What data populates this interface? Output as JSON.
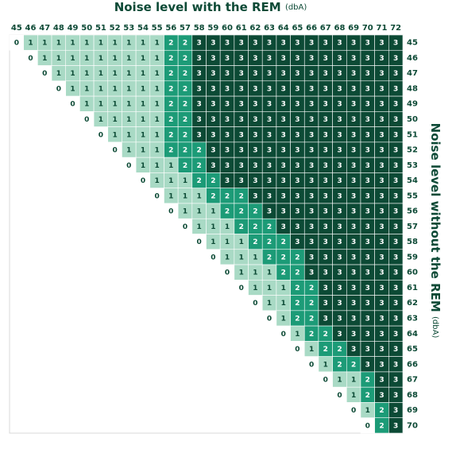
{
  "title": {
    "main": "Noise level with the REM",
    "unit": "(dbA)"
  },
  "side_title": {
    "main": "Noise level without the REM",
    "unit": "(dbA)"
  },
  "columns": [
    45,
    46,
    47,
    48,
    49,
    50,
    51,
    52,
    53,
    54,
    55,
    56,
    57,
    58,
    59,
    60,
    61,
    62,
    63,
    64,
    65,
    66,
    67,
    68,
    69,
    70,
    71,
    72
  ],
  "colors": [
    "#ffffff",
    "#a9dac5",
    "#1c9b77",
    "#0c4a35"
  ],
  "rows": [
    {
      "label": 45,
      "cells": [
        0,
        1,
        1,
        1,
        1,
        1,
        1,
        1,
        1,
        1,
        1,
        2,
        2,
        3,
        3,
        3,
        3,
        3,
        3,
        3,
        3,
        3,
        3,
        3,
        3,
        3,
        3,
        3
      ]
    },
    {
      "label": 46,
      "cells": [
        null,
        0,
        1,
        1,
        1,
        1,
        1,
        1,
        1,
        1,
        1,
        2,
        2,
        3,
        3,
        3,
        3,
        3,
        3,
        3,
        3,
        3,
        3,
        3,
        3,
        3,
        3,
        3
      ]
    },
    {
      "label": 47,
      "cells": [
        null,
        null,
        0,
        1,
        1,
        1,
        1,
        1,
        1,
        1,
        1,
        2,
        2,
        3,
        3,
        3,
        3,
        3,
        3,
        3,
        3,
        3,
        3,
        3,
        3,
        3,
        3,
        3
      ]
    },
    {
      "label": 48,
      "cells": [
        null,
        null,
        null,
        0,
        1,
        1,
        1,
        1,
        1,
        1,
        1,
        2,
        2,
        3,
        3,
        3,
        3,
        3,
        3,
        3,
        3,
        3,
        3,
        3,
        3,
        3,
        3,
        3
      ]
    },
    {
      "label": 49,
      "cells": [
        null,
        null,
        null,
        null,
        0,
        1,
        1,
        1,
        1,
        1,
        1,
        2,
        2,
        3,
        3,
        3,
        3,
        3,
        3,
        3,
        3,
        3,
        3,
        3,
        3,
        3,
        3,
        3
      ]
    },
    {
      "label": 50,
      "cells": [
        null,
        null,
        null,
        null,
        null,
        0,
        1,
        1,
        1,
        1,
        1,
        2,
        2,
        3,
        3,
        3,
        3,
        3,
        3,
        3,
        3,
        3,
        3,
        3,
        3,
        3,
        3,
        3
      ]
    },
    {
      "label": 51,
      "cells": [
        null,
        null,
        null,
        null,
        null,
        null,
        0,
        1,
        1,
        1,
        1,
        2,
        2,
        3,
        3,
        3,
        3,
        3,
        3,
        3,
        3,
        3,
        3,
        3,
        3,
        3,
        3,
        3
      ]
    },
    {
      "label": 52,
      "cells": [
        null,
        null,
        null,
        null,
        null,
        null,
        null,
        0,
        1,
        1,
        1,
        2,
        2,
        2,
        3,
        3,
        3,
        3,
        3,
        3,
        3,
        3,
        3,
        3,
        3,
        3,
        3,
        3
      ]
    },
    {
      "label": 53,
      "cells": [
        null,
        null,
        null,
        null,
        null,
        null,
        null,
        null,
        0,
        1,
        1,
        1,
        2,
        2,
        3,
        3,
        3,
        3,
        3,
        3,
        3,
        3,
        3,
        3,
        3,
        3,
        3,
        3
      ]
    },
    {
      "label": 54,
      "cells": [
        null,
        null,
        null,
        null,
        null,
        null,
        null,
        null,
        null,
        0,
        1,
        1,
        1,
        2,
        2,
        3,
        3,
        3,
        3,
        3,
        3,
        3,
        3,
        3,
        3,
        3,
        3,
        3
      ]
    },
    {
      "label": 55,
      "cells": [
        null,
        null,
        null,
        null,
        null,
        null,
        null,
        null,
        null,
        null,
        0,
        1,
        1,
        1,
        2,
        2,
        2,
        3,
        3,
        3,
        3,
        3,
        3,
        3,
        3,
        3,
        3,
        3
      ]
    },
    {
      "label": 56,
      "cells": [
        null,
        null,
        null,
        null,
        null,
        null,
        null,
        null,
        null,
        null,
        null,
        0,
        1,
        1,
        1,
        2,
        2,
        2,
        3,
        3,
        3,
        3,
        3,
        3,
        3,
        3,
        3,
        3
      ]
    },
    {
      "label": 57,
      "cells": [
        null,
        null,
        null,
        null,
        null,
        null,
        null,
        null,
        null,
        null,
        null,
        null,
        0,
        1,
        1,
        1,
        2,
        2,
        2,
        3,
        3,
        3,
        3,
        3,
        3,
        3,
        3,
        3
      ]
    },
    {
      "label": 58,
      "cells": [
        null,
        null,
        null,
        null,
        null,
        null,
        null,
        null,
        null,
        null,
        null,
        null,
        null,
        0,
        1,
        1,
        1,
        2,
        2,
        2,
        3,
        3,
        3,
        3,
        3,
        3,
        3,
        3
      ]
    },
    {
      "label": 59,
      "cells": [
        null,
        null,
        null,
        null,
        null,
        null,
        null,
        null,
        null,
        null,
        null,
        null,
        null,
        null,
        0,
        1,
        1,
        1,
        2,
        2,
        2,
        3,
        3,
        3,
        3,
        3,
        3,
        3
      ]
    },
    {
      "label": 60,
      "cells": [
        null,
        null,
        null,
        null,
        null,
        null,
        null,
        null,
        null,
        null,
        null,
        null,
        null,
        null,
        null,
        0,
        1,
        1,
        1,
        2,
        2,
        3,
        3,
        3,
        3,
        3,
        3,
        3
      ]
    },
    {
      "label": 61,
      "cells": [
        null,
        null,
        null,
        null,
        null,
        null,
        null,
        null,
        null,
        null,
        null,
        null,
        null,
        null,
        null,
        null,
        0,
        1,
        1,
        1,
        2,
        2,
        3,
        3,
        3,
        3,
        3,
        3
      ]
    },
    {
      "label": 62,
      "cells": [
        null,
        null,
        null,
        null,
        null,
        null,
        null,
        null,
        null,
        null,
        null,
        null,
        null,
        null,
        null,
        null,
        null,
        0,
        1,
        1,
        2,
        2,
        3,
        3,
        3,
        3,
        3,
        3
      ]
    },
    {
      "label": 63,
      "cells": [
        null,
        null,
        null,
        null,
        null,
        null,
        null,
        null,
        null,
        null,
        null,
        null,
        null,
        null,
        null,
        null,
        null,
        null,
        0,
        1,
        2,
        2,
        3,
        3,
        3,
        3,
        3,
        3
      ]
    },
    {
      "label": 64,
      "cells": [
        null,
        null,
        null,
        null,
        null,
        null,
        null,
        null,
        null,
        null,
        null,
        null,
        null,
        null,
        null,
        null,
        null,
        null,
        null,
        0,
        1,
        2,
        2,
        3,
        3,
        3,
        3,
        3
      ]
    },
    {
      "label": 65,
      "cells": [
        null,
        null,
        null,
        null,
        null,
        null,
        null,
        null,
        null,
        null,
        null,
        null,
        null,
        null,
        null,
        null,
        null,
        null,
        null,
        null,
        0,
        1,
        2,
        2,
        3,
        3,
        3,
        3
      ]
    },
    {
      "label": 66,
      "cells": [
        null,
        null,
        null,
        null,
        null,
        null,
        null,
        null,
        null,
        null,
        null,
        null,
        null,
        null,
        null,
        null,
        null,
        null,
        null,
        null,
        null,
        0,
        1,
        2,
        2,
        3,
        3,
        3
      ]
    },
    {
      "label": 67,
      "cells": [
        null,
        null,
        null,
        null,
        null,
        null,
        null,
        null,
        null,
        null,
        null,
        null,
        null,
        null,
        null,
        null,
        null,
        null,
        null,
        null,
        null,
        null,
        0,
        1,
        1,
        2,
        3,
        3
      ]
    },
    {
      "label": 68,
      "cells": [
        null,
        null,
        null,
        null,
        null,
        null,
        null,
        null,
        null,
        null,
        null,
        null,
        null,
        null,
        null,
        null,
        null,
        null,
        null,
        null,
        null,
        null,
        null,
        0,
        1,
        2,
        3,
        3
      ]
    },
    {
      "label": 69,
      "cells": [
        null,
        null,
        null,
        null,
        null,
        null,
        null,
        null,
        null,
        null,
        null,
        null,
        null,
        null,
        null,
        null,
        null,
        null,
        null,
        null,
        null,
        null,
        null,
        null,
        0,
        1,
        2,
        3
      ]
    },
    {
      "label": 70,
      "cells": [
        null,
        null,
        null,
        null,
        null,
        null,
        null,
        null,
        null,
        null,
        null,
        null,
        null,
        null,
        null,
        null,
        null,
        null,
        null,
        null,
        null,
        null,
        null,
        null,
        null,
        0,
        2,
        3
      ]
    }
  ]
}
